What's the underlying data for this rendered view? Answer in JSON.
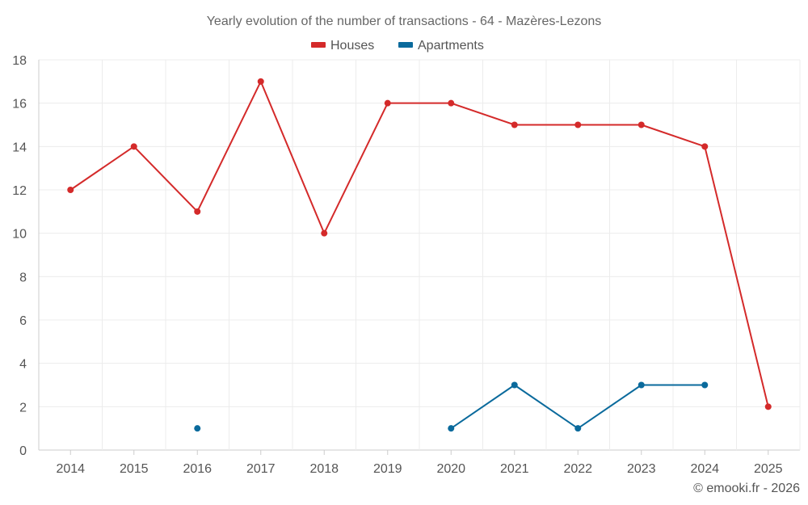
{
  "chart_data": {
    "type": "line",
    "title": "Yearly evolution of the number of transactions - 64 - Mazères-Lezons",
    "categories": [
      "2014",
      "2015",
      "2016",
      "2017",
      "2018",
      "2019",
      "2020",
      "2021",
      "2022",
      "2023",
      "2024",
      "2025"
    ],
    "series": [
      {
        "name": "Houses",
        "color": "#d42a2a",
        "values": [
          12,
          14,
          11,
          17,
          10,
          16,
          16,
          15,
          15,
          15,
          14,
          2
        ]
      },
      {
        "name": "Apartments",
        "color": "#0a6a9c",
        "values": [
          null,
          null,
          1,
          null,
          null,
          null,
          1,
          3,
          1,
          3,
          3,
          null
        ]
      }
    ],
    "ylim": [
      0,
      18
    ],
    "yticks": [
      "0",
      "2",
      "4",
      "6",
      "8",
      "10",
      "12",
      "14",
      "16",
      "18"
    ],
    "xlabel": "",
    "ylabel": "",
    "grid": true,
    "legend": "top-center"
  },
  "credit": "© emooki.fr - 2026"
}
